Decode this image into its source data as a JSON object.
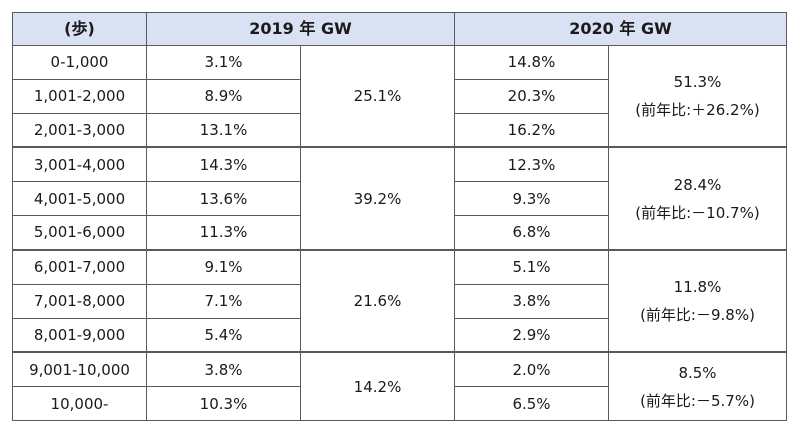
{
  "headers": {
    "steps": "(歩)",
    "year2019": "2019 年 GW",
    "year2020": "2020 年 GW"
  },
  "rows": [
    {
      "range": "0-1,000",
      "y2019": "3.1%",
      "y2020": "14.8%"
    },
    {
      "range": "1,001-2,000",
      "y2019": "8.9%",
      "y2020": "20.3%"
    },
    {
      "range": "2,001-3,000",
      "y2019": "13.1%",
      "y2020": "16.2%"
    },
    {
      "range": "3,001-4,000",
      "y2019": "14.3%",
      "y2020": "12.3%"
    },
    {
      "range": "4,001-5,000",
      "y2019": "13.6%",
      "y2020": "9.3%"
    },
    {
      "range": "5,001-6,000",
      "y2019": "11.3%",
      "y2020": "6.8%"
    },
    {
      "range": "6,001-7,000",
      "y2019": "9.1%",
      "y2020": "5.1%"
    },
    {
      "range": "7,001-8,000",
      "y2019": "7.1%",
      "y2020": "3.8%"
    },
    {
      "range": "8,001-9,000",
      "y2019": "5.4%",
      "y2020": "2.9%"
    },
    {
      "range": "9,001-10,000",
      "y2019": "3.8%",
      "y2020": "2.0%"
    },
    {
      "range": "10,000-",
      "y2019": "10.3%",
      "y2020": "6.5%"
    }
  ],
  "groups": [
    {
      "sum2019": "25.1%",
      "sum2020": "51.3%",
      "yoy2020": "(前年比:＋26.2%)"
    },
    {
      "sum2019": "39.2%",
      "sum2020": "28.4%",
      "yoy2020": "(前年比:－10.7%)"
    },
    {
      "sum2019": "21.6%",
      "sum2020": "11.8%",
      "yoy2020": "(前年比:－9.8%)"
    },
    {
      "sum2019": "14.2%",
      "sum2020": "8.5%",
      "yoy2020": "(前年比:－5.7%)"
    }
  ]
}
